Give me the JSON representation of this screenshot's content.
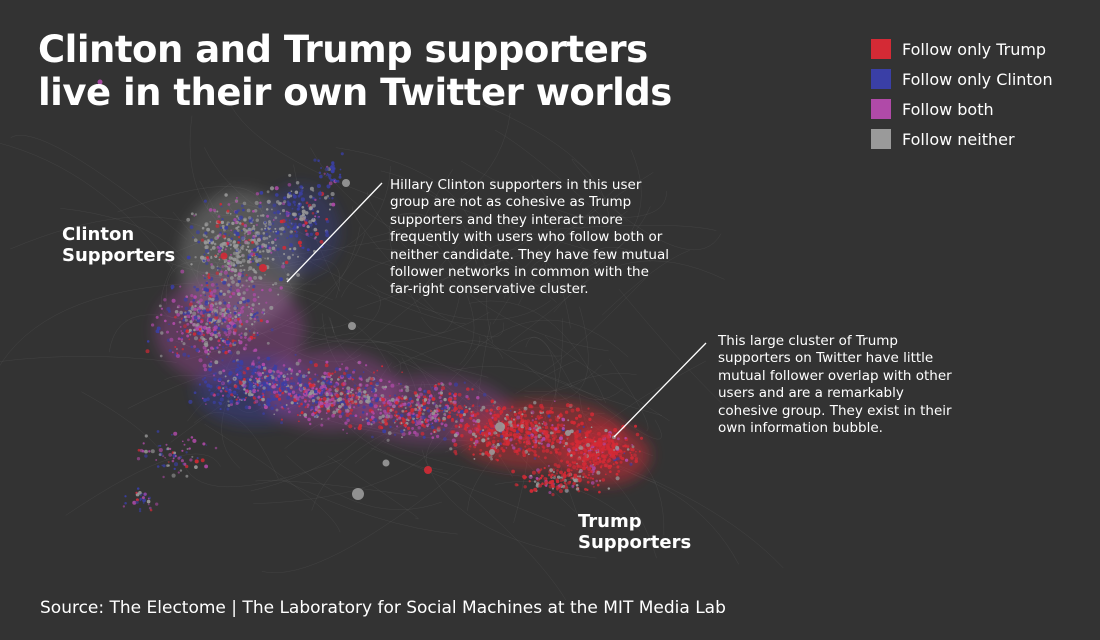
{
  "title": {
    "line1": "Clinton and Trump supporters",
    "line2": "live in their own Twitter worlds"
  },
  "legend": {
    "items": [
      {
        "label": "Follow only Trump",
        "color": "#d42a35"
      },
      {
        "label": "Follow only Clinton",
        "color": "#3a3fa6"
      },
      {
        "label": "Follow both",
        "color": "#b04aa8"
      },
      {
        "label": "Follow neither",
        "color": "#9a9a9a"
      }
    ]
  },
  "labels": {
    "clinton": {
      "line1": "Clinton",
      "line2": "Supporters"
    },
    "trump": {
      "line1": "Trump",
      "line2": "Supporters"
    }
  },
  "annotations": {
    "clinton": {
      "lines": [
        "Hillary Clinton supporters in this user",
        "group are not as cohesive as Trump",
        "supporters and they interact more",
        "frequently with users who follow both or",
        "neither candidate. They have few mutual",
        "follower networks in common with the",
        "far-right conservative cluster."
      ]
    },
    "trump": {
      "lines": [
        "This large cluster of Trump",
        "supporters on Twitter have little",
        "mutual follower overlap with other",
        "users and are a remarkably",
        "cohesive group. They exist in their",
        "own information bubble."
      ]
    }
  },
  "source": "Source: The Electome  |  The  Laboratory for Social Machines at the MIT Media Lab"
}
